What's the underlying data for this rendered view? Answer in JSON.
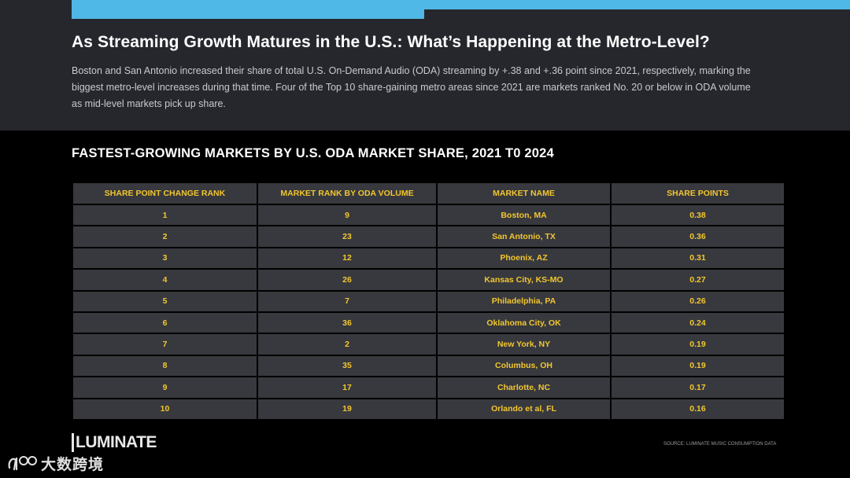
{
  "header": {
    "title": "As Streaming Growth Matures in the U.S.: What’s Happening at the Metro-Level?",
    "intro_line_1": "Boston and San Antonio increased their share of total U.S. On-Demand Audio (ODA) streaming by +.38 and +.36 point since 2021, respectively, marking the",
    "intro_line_2": "biggest metro-level increases during that time. Four of the Top 10 share-gaining metro areas since 2021 are markets ranked No. 20 or below in ODA volume",
    "intro_line_3": "as mid-level markets pick up share.",
    "accent_color": "#4fb8e6"
  },
  "table": {
    "title": "FASTEST-GROWING MARKETS BY U.S. ODA MARKET SHARE, 2021 T0 2024",
    "columns": [
      "SHARE POINT CHANGE RANK",
      "MARKET RANK BY ODA VOLUME",
      "MARKET NAME",
      "SHARE POINTS"
    ],
    "rows": [
      {
        "rank": "1",
        "oda_rank": "9",
        "market": "Boston, MA",
        "share": "0.38"
      },
      {
        "rank": "2",
        "oda_rank": "23",
        "market": "San Antonio, TX",
        "share": "0.36"
      },
      {
        "rank": "3",
        "oda_rank": "12",
        "market": "Phoenix, AZ",
        "share": "0.31"
      },
      {
        "rank": "4",
        "oda_rank": "26",
        "market": "Kansas City, KS-MO",
        "share": "0.27"
      },
      {
        "rank": "5",
        "oda_rank": "7",
        "market": "Philadelphia, PA",
        "share": "0.26"
      },
      {
        "rank": "6",
        "oda_rank": "36",
        "market": "Oklahoma City, OK",
        "share": "0.24"
      },
      {
        "rank": "7",
        "oda_rank": "2",
        "market": "New York, NY",
        "share": "0.19"
      },
      {
        "rank": "8",
        "oda_rank": "35",
        "market": "Columbus, OH",
        "share": "0.19"
      },
      {
        "rank": "9",
        "oda_rank": "17",
        "market": "Charlotte, NC",
        "share": "0.17"
      },
      {
        "rank": "10",
        "oda_rank": "19",
        "market": "Orlando et al, FL",
        "share": "0.16"
      }
    ],
    "text_color": "#f2c62f"
  },
  "footer": {
    "brand": "LUMINATE",
    "source": "SOURCE: LUMINATE MUSIC CONSUMPTION DATA",
    "watermark_text": "大数跨境",
    "watermark_icon": "watermark-logo-icon"
  }
}
